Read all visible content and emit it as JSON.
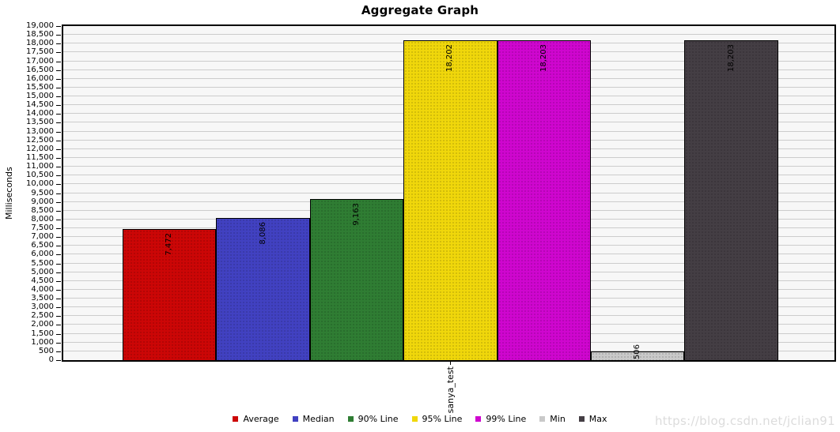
{
  "watermark": {
    "text": "https://blog.csdn.net/jclian91"
  },
  "chart_data": {
    "type": "bar",
    "title": "Aggregate Graph",
    "ylabel": "Milliseconds",
    "xlabel": "",
    "category": "sanya_test",
    "ylim": [
      0,
      19000
    ],
    "ytick_step": 500,
    "grid": true,
    "legend_position": "bottom",
    "plot_background": "#f7f7f7",
    "gridline_color": "#cccccc",
    "series": [
      {
        "name": "Average",
        "value": 7472,
        "label": "7,472",
        "color": "#cc0606"
      },
      {
        "name": "Median",
        "value": 8086,
        "label": "8,086",
        "color": "#4141c1"
      },
      {
        "name": "90% Line",
        "value": 9163,
        "label": "9,163",
        "color": "#2f7d33"
      },
      {
        "name": "95% Line",
        "value": 18202,
        "label": "18,202",
        "color": "#f0d70b"
      },
      {
        "name": "99% Line",
        "value": 18203,
        "label": "18,203",
        "color": "#cf06cf"
      },
      {
        "name": "Min",
        "value": 506,
        "label": "506",
        "color": "#c9c9c9"
      },
      {
        "name": "Max",
        "value": 18203,
        "label": "18,203",
        "color": "#443e44"
      }
    ]
  }
}
